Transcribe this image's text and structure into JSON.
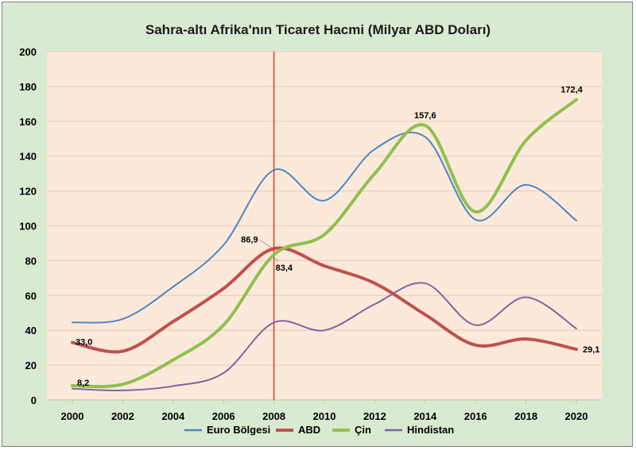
{
  "chart_data": {
    "type": "line",
    "title": "Sahra-altı Afrika'nın Ticaret Hacmi (Milyar ABD Doları)",
    "xlabel": "",
    "ylabel": "",
    "x": [
      2000,
      2002,
      2004,
      2006,
      2008,
      2010,
      2012,
      2014,
      2016,
      2018,
      2020
    ],
    "x_tick_labels": [
      "2000",
      "2002",
      "2004",
      "2006",
      "2008",
      "2010",
      "2012",
      "2014",
      "2016",
      "2018",
      "2020"
    ],
    "ylim": [
      0,
      200
    ],
    "y_ticks": [
      0,
      20,
      40,
      60,
      80,
      100,
      120,
      140,
      160,
      180,
      200
    ],
    "grid": true,
    "legend_position": "bottom",
    "vertical_marker_x": 2008,
    "series": [
      {
        "name": "Euro Bölgesi",
        "color": "#4a86c5",
        "width": 2,
        "values": [
          44.5,
          46.5,
          65,
          89,
          132,
          114.5,
          144,
          151,
          103.5,
          123.5,
          103
        ]
      },
      {
        "name": "ABD",
        "color": "#c0504d",
        "width": 4,
        "values": [
          33.0,
          28,
          45,
          64,
          86.9,
          77,
          67,
          49,
          31.5,
          35,
          29.1
        ]
      },
      {
        "name": "Çin",
        "color": "#8ec04f",
        "width": 4,
        "values": [
          8.2,
          9,
          23,
          43,
          83.4,
          95,
          130,
          157.6,
          108,
          149,
          172.4
        ]
      },
      {
        "name": "Hindistan",
        "color": "#8064a2",
        "width": 2,
        "values": [
          6.5,
          5.5,
          8,
          15.5,
          44.5,
          40,
          55,
          67,
          43,
          59,
          41
        ]
      }
    ],
    "annotations": [
      {
        "text": "33,0",
        "series": "ABD",
        "x": 2000,
        "y": 33.0
      },
      {
        "text": "8,2",
        "series": "Çin",
        "x": 2000,
        "y": 8.2
      },
      {
        "text": "86,9",
        "series": "ABD",
        "x": 2008,
        "y": 86.9
      },
      {
        "text": "83,4",
        "series": "Çin",
        "x": 2008,
        "y": 83.4
      },
      {
        "text": "157,6",
        "series": "Çin",
        "x": 2014,
        "y": 157.6
      },
      {
        "text": "172,4",
        "series": "Çin",
        "x": 2020,
        "y": 172.4
      },
      {
        "text": "29,1",
        "series": "ABD",
        "x": 2020,
        "y": 29.1
      }
    ]
  },
  "colors": {
    "outer_background": "#d9ead3",
    "plot_background": "#fde9d9",
    "grid": "#e6c9b4",
    "marker_line": "#e2452b"
  }
}
